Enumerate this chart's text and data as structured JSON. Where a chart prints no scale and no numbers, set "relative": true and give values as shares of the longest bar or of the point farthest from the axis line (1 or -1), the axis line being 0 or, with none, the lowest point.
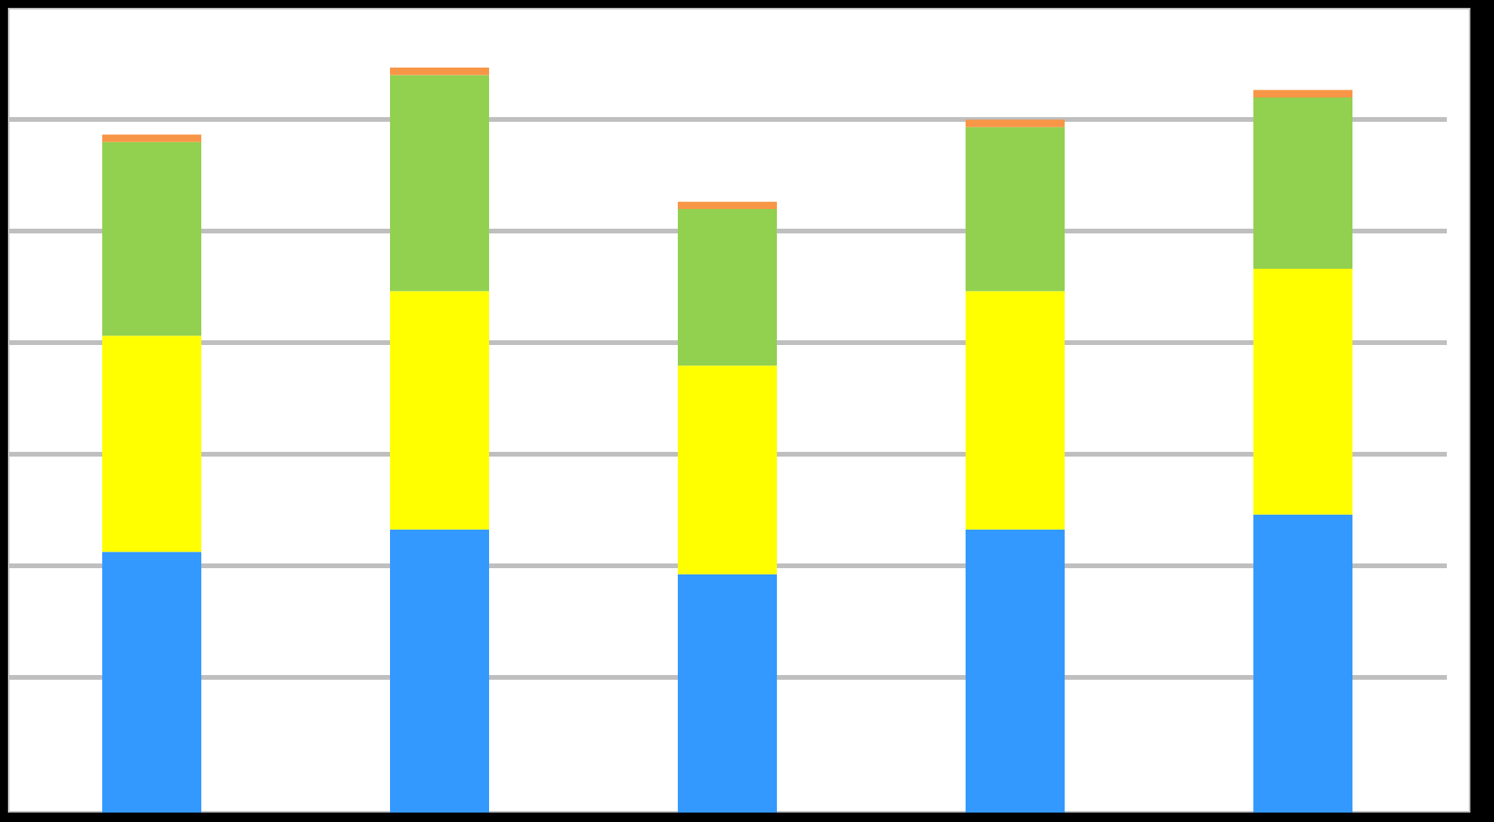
{
  "chart_data": {
    "type": "bar",
    "stacked": true,
    "relative": true,
    "categories": [
      null,
      null,
      null,
      null,
      null
    ],
    "series": [
      {
        "color": "#3399ff",
        "values": [
          0.35,
          0.38,
          0.32,
          0.38,
          0.4
        ]
      },
      {
        "color": "#ffff00",
        "values": [
          0.29,
          0.32,
          0.28,
          0.32,
          0.33
        ]
      },
      {
        "color": "#92d050",
        "values": [
          0.26,
          0.29,
          0.21,
          0.22,
          0.23
        ]
      },
      {
        "color": "#f79646",
        "values": [
          0.01,
          0.01,
          0.01,
          0.01,
          0.01
        ]
      }
    ],
    "grid": "y"
  }
}
